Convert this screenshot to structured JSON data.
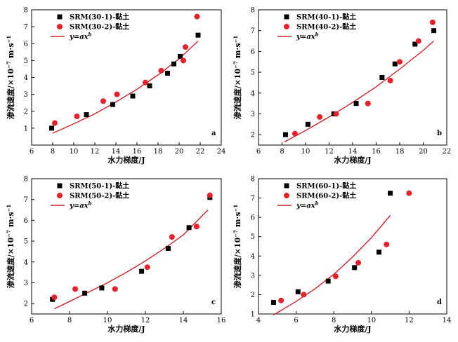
{
  "chart_data": [
    {
      "type": "scatter",
      "panel_label": "a",
      "xlabel": "水力梯度/J",
      "ylabel": "渗流速度/×10⁻⁷ m·s⁻¹",
      "xlim": [
        6,
        24
      ],
      "ylim": [
        0,
        8
      ],
      "xticks": [
        6,
        8,
        10,
        12,
        14,
        16,
        18,
        20,
        22,
        24
      ],
      "yticks": [
        1,
        2,
        3,
        4,
        5,
        6,
        7,
        8
      ],
      "series": [
        {
          "name": "SRM(30-1)-黏土",
          "marker": "square",
          "color": "#000000",
          "x": [
            7.9,
            11.2,
            13.7,
            15.6,
            17.2,
            18.9,
            19.5,
            20.1,
            21.8
          ],
          "y": [
            1.0,
            1.8,
            2.4,
            2.9,
            3.5,
            4.25,
            4.8,
            5.25,
            6.5
          ]
        },
        {
          "name": "SRM(30-2)-黏土",
          "marker": "circle",
          "color": "#e8202a",
          "x": [
            8.2,
            10.3,
            12.8,
            14.1,
            16.8,
            18.3,
            20.4,
            20.6,
            21.7
          ],
          "y": [
            1.3,
            1.7,
            2.6,
            3.0,
            3.7,
            4.4,
            5.0,
            5.8,
            7.6
          ]
        },
        {
          "name": "y=axᵇ",
          "marker": "line",
          "color": "#c8282e",
          "x": [
            8.0,
            10.0,
            12.0,
            14.0,
            16.0,
            18.0,
            20.0,
            21.8
          ],
          "y": [
            0.7,
            1.26,
            1.85,
            2.55,
            3.3,
            4.15,
            5.1,
            6.15
          ]
        }
      ],
      "legend": "top-left"
    },
    {
      "type": "scatter",
      "panel_label": "b",
      "xlabel": "水力梯度/J",
      "ylabel": "渗流速度/×10⁻⁷ m·s⁻¹",
      "xlim": [
        6,
        22
      ],
      "ylim": [
        1.5,
        8
      ],
      "xticks": [
        6,
        8,
        10,
        12,
        14,
        16,
        18,
        20,
        22
      ],
      "yticks": [
        2,
        3,
        4,
        5,
        6,
        7,
        8
      ],
      "series": [
        {
          "name": "SRM(40-1)-黏土",
          "marker": "square",
          "color": "#000000",
          "x": [
            8.3,
            10.2,
            12.4,
            14.3,
            16.5,
            17.6,
            19.3,
            20.9
          ],
          "y": [
            2.0,
            2.5,
            3.0,
            3.5,
            4.75,
            5.4,
            6.35,
            7.0
          ]
        },
        {
          "name": "SRM(40-2)-黏土",
          "marker": "circle",
          "color": "#e8202a",
          "x": [
            9.1,
            11.2,
            12.6,
            15.3,
            17.2,
            18.0,
            19.6,
            20.8
          ],
          "y": [
            2.05,
            2.85,
            3.0,
            3.5,
            4.6,
            5.5,
            6.5,
            7.4
          ]
        },
        {
          "name": "y=axᵇ",
          "marker": "line",
          "color": "#c8282e",
          "x": [
            8.2,
            10.0,
            12.0,
            14.0,
            16.0,
            18.0,
            20.0,
            20.9
          ],
          "y": [
            1.65,
            2.2,
            2.85,
            3.55,
            4.3,
            5.15,
            6.05,
            6.5
          ]
        }
      ],
      "legend": "top-left"
    },
    {
      "type": "scatter",
      "panel_label": "c",
      "xlabel": "水力梯度/J",
      "ylabel": "渗流速度/×10⁻⁷ m·s⁻¹",
      "xlim": [
        6,
        16
      ],
      "ylim": [
        1.5,
        8
      ],
      "xticks": [
        6,
        8,
        10,
        12,
        14,
        16
      ],
      "yticks": [
        2,
        3,
        4,
        5,
        6,
        7,
        8
      ],
      "series": [
        {
          "name": "SRM(50-1)-黏土",
          "marker": "square",
          "color": "#000000",
          "x": [
            7.1,
            8.8,
            9.7,
            11.8,
            13.2,
            14.3,
            15.4
          ],
          "y": [
            2.2,
            2.5,
            2.75,
            3.55,
            4.65,
            5.65,
            7.1
          ]
        },
        {
          "name": "SRM(50-2)-黏土",
          "marker": "circle",
          "color": "#e8202a",
          "x": [
            7.2,
            8.3,
            10.4,
            12.1,
            13.4,
            14.7,
            15.4
          ],
          "y": [
            2.3,
            2.7,
            2.7,
            3.75,
            5.2,
            5.7,
            7.2
          ]
        },
        {
          "name": "y=axᵇ",
          "marker": "line",
          "color": "#c8282e",
          "x": [
            7.2,
            8.0,
            9.0,
            10.0,
            11.0,
            12.0,
            13.0,
            14.0,
            15.3
          ],
          "y": [
            1.75,
            2.1,
            2.55,
            3.0,
            3.5,
            4.05,
            4.65,
            5.3,
            6.5
          ]
        }
      ],
      "legend": "top-left"
    },
    {
      "type": "scatter",
      "panel_label": "d",
      "xlabel": "水力梯度/J",
      "ylabel": "渗流速度/×10⁻⁷ m·s⁻¹",
      "xlim": [
        4,
        14
      ],
      "ylim": [
        1,
        8
      ],
      "xticks": [
        4,
        6,
        8,
        10,
        12,
        14
      ],
      "yticks": [
        1,
        2,
        3,
        4,
        5,
        6,
        7,
        8
      ],
      "series": [
        {
          "name": "SRM(60-1)-黏土",
          "marker": "square",
          "color": "#000000",
          "x": [
            4.8,
            6.1,
            7.7,
            9.1,
            10.4,
            11.0
          ],
          "y": [
            1.6,
            2.15,
            2.7,
            3.4,
            4.2,
            7.25
          ]
        },
        {
          "name": "SRM(60-2)-黏土",
          "marker": "circle",
          "color": "#e8202a",
          "x": [
            5.2,
            6.4,
            8.1,
            9.3,
            10.8,
            12.0
          ],
          "y": [
            1.7,
            2.0,
            2.95,
            3.65,
            4.6,
            7.25
          ]
        },
        {
          "name": "y=axᵇ",
          "marker": "line",
          "color": "#c8282e",
          "x": [
            4.8,
            6.0,
            7.0,
            8.0,
            9.0,
            10.0,
            11.0
          ],
          "y": [
            0.95,
            1.65,
            2.3,
            3.05,
            3.95,
            4.95,
            6.1
          ]
        }
      ],
      "legend": "top-left"
    }
  ]
}
